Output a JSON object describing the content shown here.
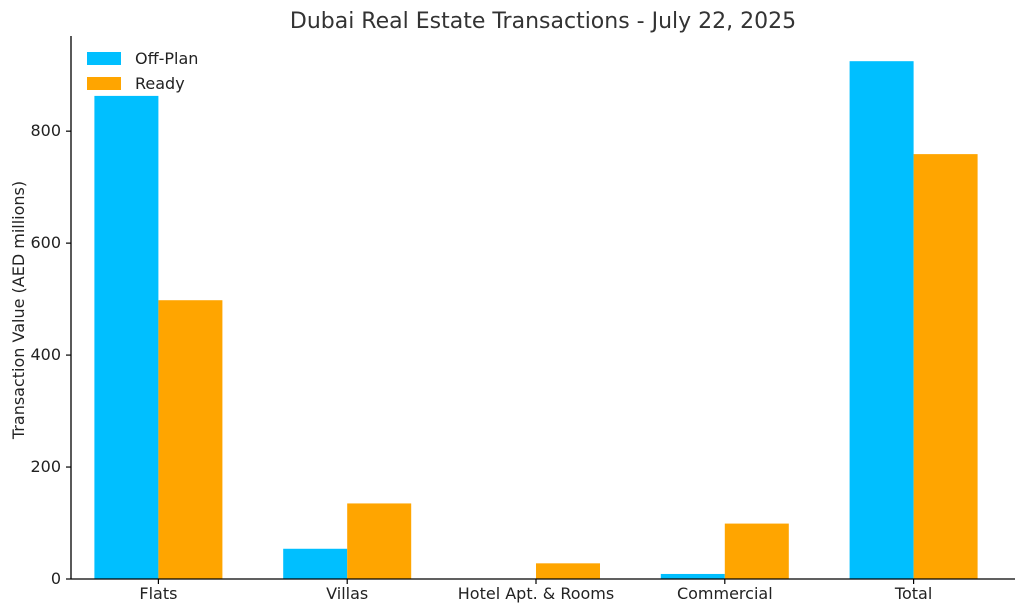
{
  "chart_data": {
    "type": "bar",
    "title": "Dubai Real Estate Transactions - July 22, 2025",
    "xlabel": "",
    "ylabel": "Transaction Value (AED millions)",
    "categories": [
      "Flats",
      "Villas",
      "Hotel Apt. & Rooms",
      "Commercial",
      "Total"
    ],
    "series": [
      {
        "name": "Off-Plan",
        "color": "#00BFFF",
        "values": [
          863,
          54,
          0,
          9,
          925
        ]
      },
      {
        "name": "Ready",
        "color": "#FFA500",
        "values": [
          498,
          135,
          28,
          99,
          759
        ]
      }
    ],
    "ylim": [
      0,
      970
    ],
    "yticks": [
      0,
      200,
      400,
      600,
      800
    ],
    "grid": false,
    "legend_position": "top-left"
  }
}
